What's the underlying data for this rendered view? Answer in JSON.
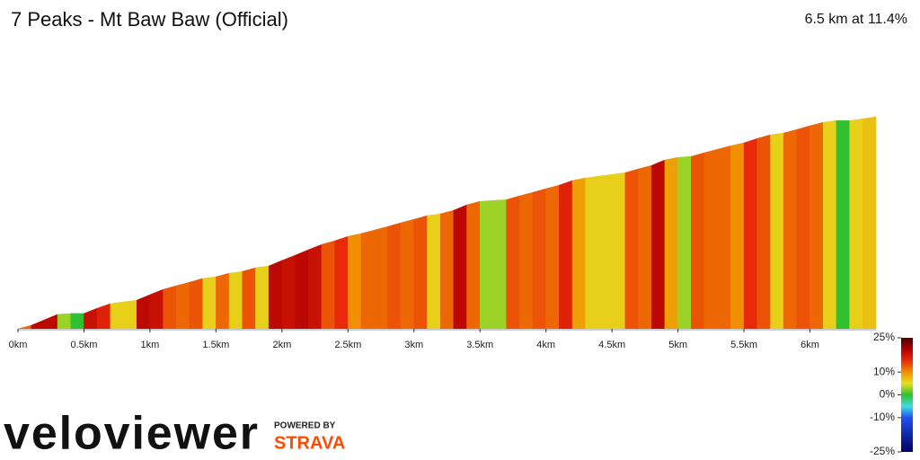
{
  "chart_data": {
    "type": "elevation-profile",
    "title": "7 Peaks - Mt Baw Baw (Official)",
    "summary": "6.5 km at 11.4%",
    "x": [
      0,
      0.1,
      0.2,
      0.3,
      0.4,
      0.5,
      0.6,
      0.7,
      0.8,
      0.9,
      1,
      1.1,
      1.2,
      1.3,
      1.4,
      1.5,
      1.6,
      1.7,
      1.8,
      1.9,
      2,
      2.1,
      2.2,
      2.3,
      2.4,
      2.5,
      2.6,
      2.7,
      2.8,
      2.9,
      3,
      3.1,
      3.2,
      3.3,
      3.4,
      3.5,
      3.6,
      3.7,
      3.8,
      3.9,
      4,
      4.1,
      4.2,
      4.3,
      4.4,
      4.5,
      4.6,
      4.7,
      4.8,
      4.9,
      5,
      5.1,
      5.2,
      5.3,
      5.4,
      5.5,
      5.6,
      5.7,
      5.8,
      5.9,
      6,
      6.1,
      6.2,
      6.3,
      6.4,
      6.5
    ],
    "elevation": [
      0,
      12,
      31,
      50,
      53,
      53,
      71,
      87,
      93,
      99,
      118,
      136,
      149,
      161,
      174,
      180,
      192,
      198,
      211,
      217,
      236,
      254,
      273,
      291,
      304,
      319,
      329,
      341,
      353,
      366,
      378,
      391,
      397,
      409,
      428,
      440,
      443,
      446,
      459,
      471,
      484,
      496,
      512,
      521,
      527,
      533,
      539,
      552,
      564,
      583,
      592,
      595,
      608,
      620,
      632,
      642,
      657,
      670,
      676,
      688,
      701,
      713,
      719,
      719,
      725,
      732
    ],
    "xlim": [
      0,
      6.5
    ],
    "xticks": [
      {
        "value": 0,
        "label": "0km"
      },
      {
        "value": 0.5,
        "label": "0.5km"
      },
      {
        "value": 1,
        "label": "1km"
      },
      {
        "value": 1.5,
        "label": "1.5km"
      },
      {
        "value": 2,
        "label": "2km"
      },
      {
        "value": 2.5,
        "label": "2.5km"
      },
      {
        "value": 3,
        "label": "3km"
      },
      {
        "value": 3.5,
        "label": "3.5km"
      },
      {
        "value": 4,
        "label": "4km"
      },
      {
        "value": 4.5,
        "label": "4.5km"
      },
      {
        "value": 5,
        "label": "5km"
      },
      {
        "value": 5.5,
        "label": "5.5km"
      },
      {
        "value": 6,
        "label": "6km"
      }
    ],
    "colorscale": [
      {
        "value": 25,
        "color": "#4a0000"
      },
      {
        "value": 20,
        "color": "#b00000"
      },
      {
        "value": 15,
        "color": "#e82a0a"
      },
      {
        "value": 10,
        "color": "#f09000"
      },
      {
        "value": 5,
        "color": "#e6e020"
      },
      {
        "value": 0,
        "color": "#30c030"
      },
      {
        "value": -5,
        "color": "#40e0e0"
      },
      {
        "value": -10,
        "color": "#2050f0"
      },
      {
        "value": -25,
        "color": "#000060"
      }
    ],
    "colorticks": [
      {
        "value": 25,
        "label": "25%"
      },
      {
        "value": 10,
        "label": "10%"
      },
      {
        "value": 0,
        "label": "0%"
      },
      {
        "value": -10,
        "label": "-10%"
      },
      {
        "value": -25,
        "label": "-25%"
      }
    ]
  },
  "branding": {
    "logo": "veloviewer",
    "powered_by": "POWERED BY",
    "partner": "STRAVA"
  }
}
